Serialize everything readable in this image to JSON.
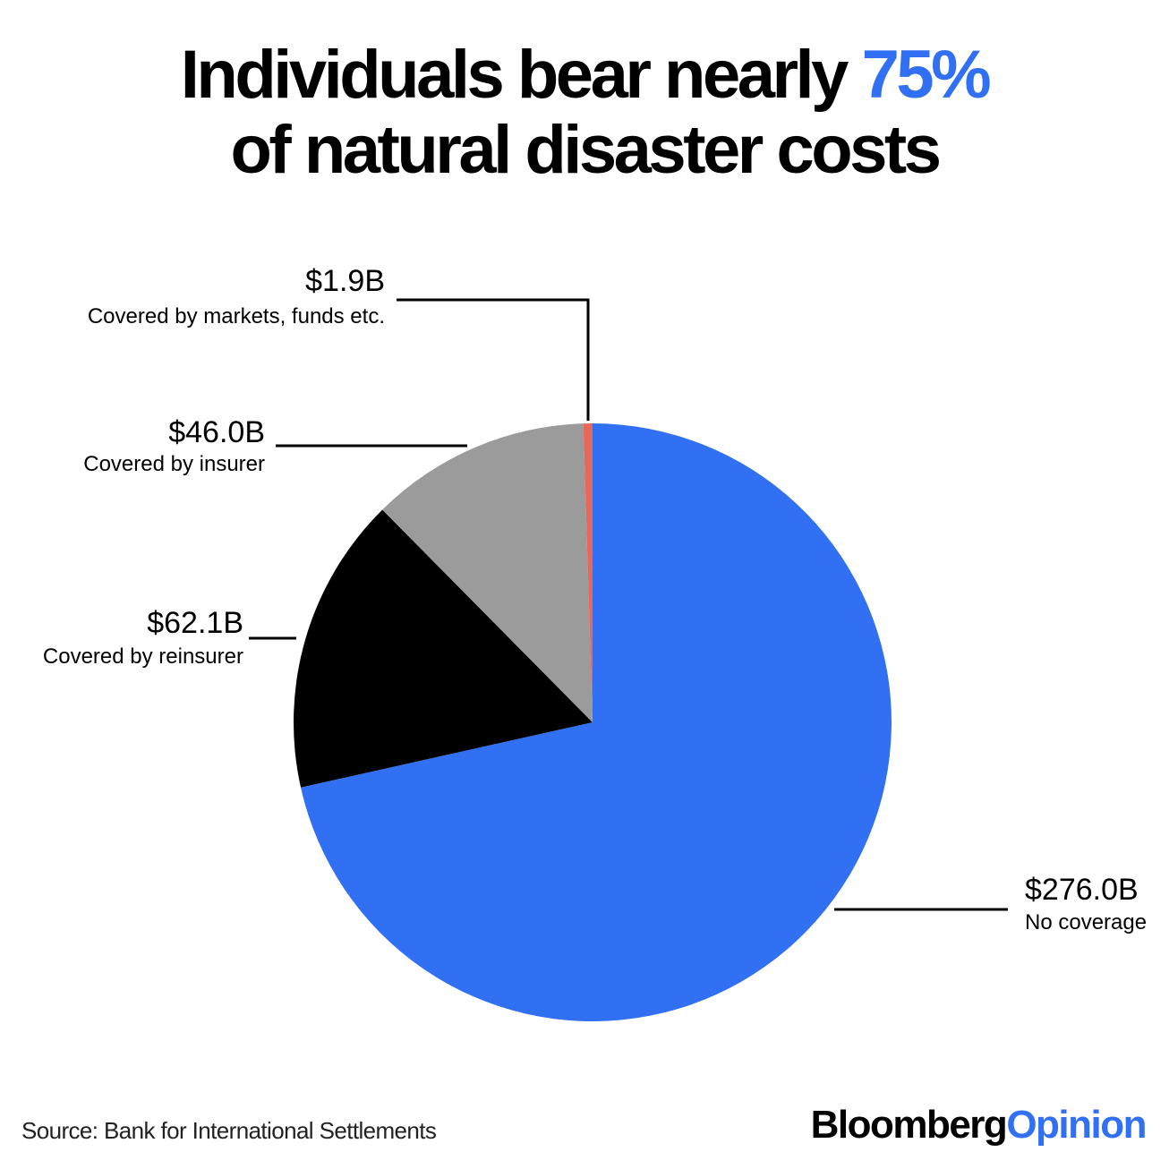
{
  "header": {
    "title_part1": "Individuals bear nearly",
    "title_accent": "75%",
    "title_part2": "of natural disaster costs"
  },
  "chart_data": {
    "type": "pie",
    "title": "Individuals bear nearly 75% of natural disaster costs",
    "slices": [
      {
        "value_label": "$276.0B",
        "value": 276.0,
        "name": "No coverage",
        "color": "#3170f2"
      },
      {
        "value_label": "$62.1B",
        "value": 62.1,
        "name": "Covered by reinsurer",
        "color": "#000000"
      },
      {
        "value_label": "$46.0B",
        "value": 46.0,
        "name": "Covered by insurer",
        "color": "#9b9b9b"
      },
      {
        "value_label": "$1.9B",
        "value": 1.9,
        "name": "Covered by markets, funds etc.",
        "color": "#e8665a"
      }
    ],
    "start": "12 o'clock",
    "direction": "clockwise"
  },
  "footer": {
    "source": "Source: Bank for International Settlements",
    "brand_part1": "Bloomberg",
    "brand_part2": "Opinion"
  }
}
